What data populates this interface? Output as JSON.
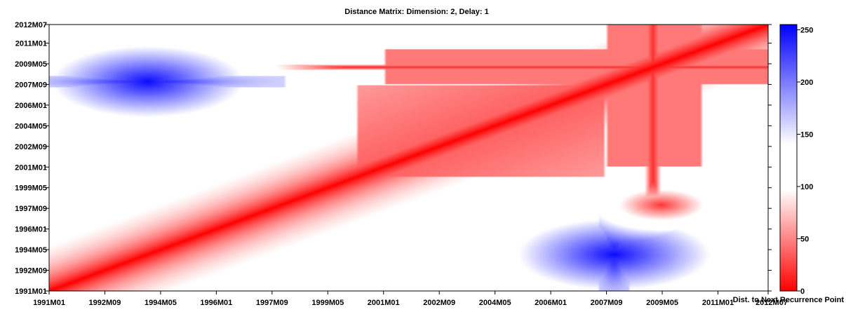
{
  "chart_data": {
    "type": "heatmap",
    "title": "Distance Matrix: Dimension: 2,  Delay: 1",
    "x_ticks": [
      "1991M01",
      "1992M09",
      "1994M05",
      "1996M01",
      "1997M09",
      "1999M05",
      "2001M01",
      "2002M09",
      "2004M05",
      "2006M01",
      "2007M09",
      "2009M05",
      "2011M01",
      "2012M07"
    ],
    "y_ticks": [
      "1991M01",
      "1992M09",
      "1994M05",
      "1996M01",
      "1997M09",
      "1999M05",
      "2001M01",
      "2002M09",
      "2004M05",
      "2006M01",
      "2007M09",
      "2009M05",
      "2011M01",
      "2012M07"
    ],
    "x_range": [
      "1991M01",
      "2012M07"
    ],
    "y_range": [
      "1991M01",
      "2012M07"
    ],
    "colorbar": {
      "label": "Dist. to Next Recurrence Point",
      "ticks": [
        0,
        50,
        100,
        150,
        200,
        250
      ],
      "range": [
        0,
        255
      ],
      "colors": {
        "low": "#ff0000",
        "mid": "#ffffff",
        "high": "#0000ff"
      }
    },
    "features": [
      {
        "type": "diagonal",
        "from": "1991M01",
        "to": "2012M07",
        "value": 0
      },
      {
        "type": "row_band",
        "date": "2009M02",
        "value": 15
      },
      {
        "type": "col_band",
        "date": "2009M02",
        "value": 15
      },
      {
        "type": "blob",
        "x": "1993M12",
        "y": "2007M12",
        "value": 250
      },
      {
        "type": "blob",
        "x": "2007M12",
        "y": "1993M12",
        "value": 250
      },
      {
        "type": "blob",
        "x": "2009M05",
        "y": "1997M12",
        "value": 20
      }
    ]
  }
}
